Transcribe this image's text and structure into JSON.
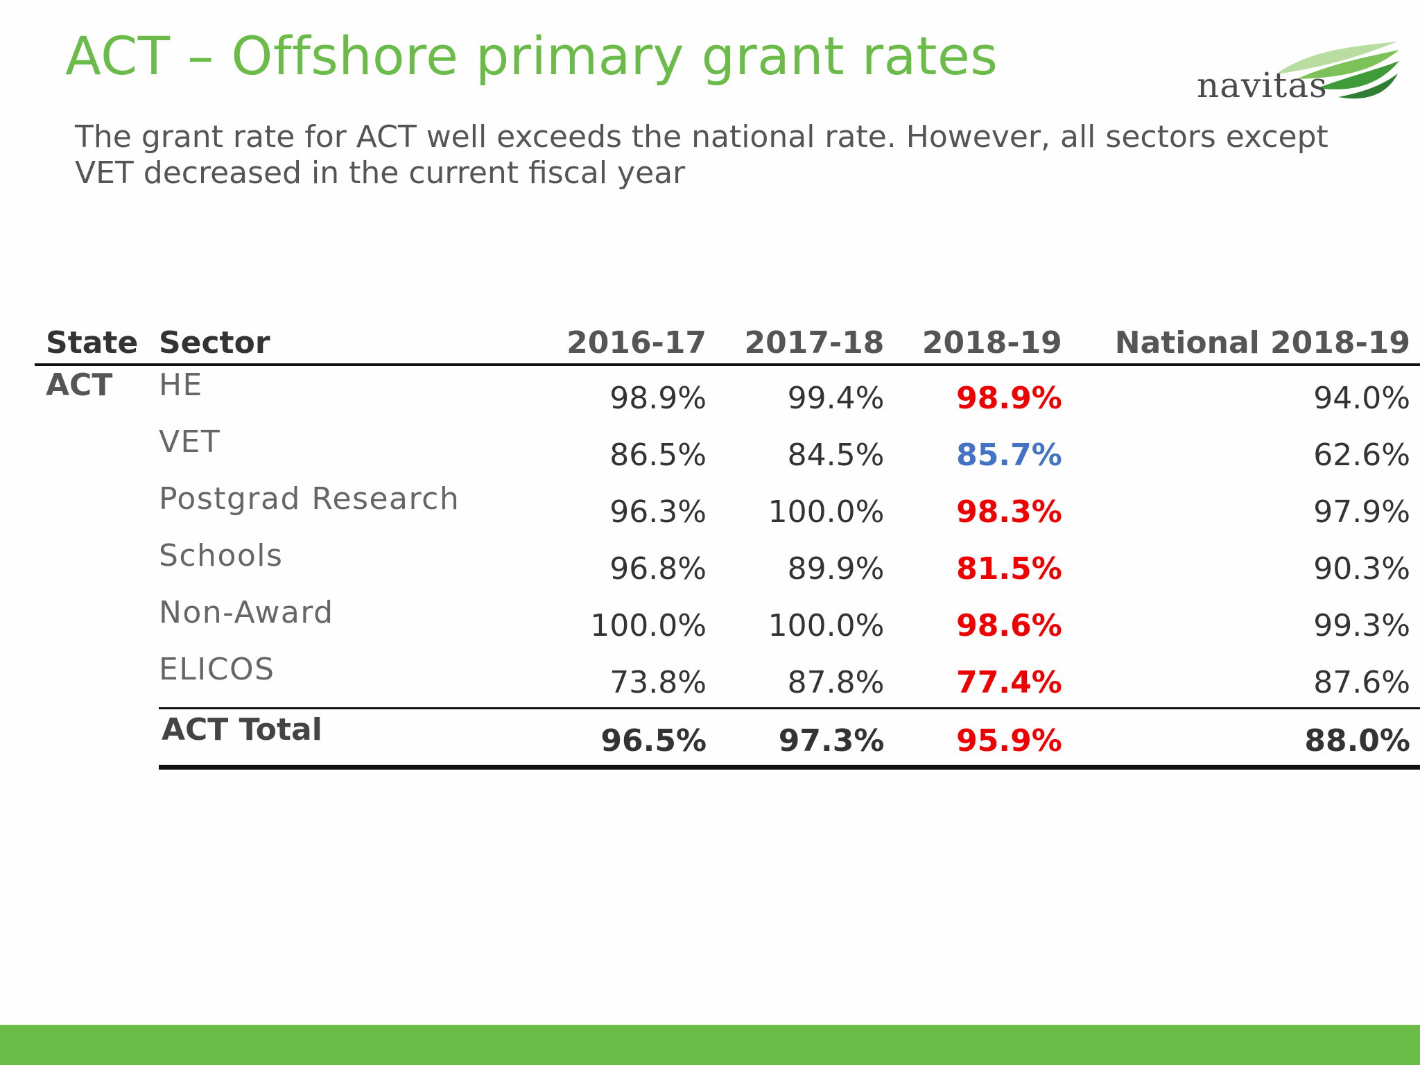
{
  "slide": {
    "title": "ACT – Offshore primary grant rates",
    "subtitle": "The grant rate for ACT well exceeds the national rate. However, all sectors except VET decreased in the current fiscal year",
    "logo_text": "navitas",
    "colors": {
      "accent": "#6abb48",
      "decrease": "#ee0000",
      "increase": "#4472c4"
    }
  },
  "table": {
    "headers": {
      "state": "State",
      "sector": "Sector",
      "y1": "2016-17",
      "y2": "2017-18",
      "y3": "2018-19",
      "national": "National 2018-19"
    },
    "state": "ACT",
    "rows": [
      {
        "sector": "HE",
        "y1": "98.9%",
        "y2": "99.4%",
        "y3": "98.9%",
        "national": "94.0%",
        "trend": "down"
      },
      {
        "sector": "VET",
        "y1": "86.5%",
        "y2": "84.5%",
        "y3": "85.7%",
        "national": "62.6%",
        "trend": "up"
      },
      {
        "sector": "Postgrad Research",
        "y1": "96.3%",
        "y2": "100.0%",
        "y3": "98.3%",
        "national": "97.9%",
        "trend": "down"
      },
      {
        "sector": "Schools",
        "y1": "96.8%",
        "y2": "89.9%",
        "y3": "81.5%",
        "national": "90.3%",
        "trend": "down"
      },
      {
        "sector": "Non-Award",
        "y1": "100.0%",
        "y2": "100.0%",
        "y3": "98.6%",
        "national": "99.3%",
        "trend": "down"
      },
      {
        "sector": "ELICOS",
        "y1": "73.8%",
        "y2": "87.8%",
        "y3": "77.4%",
        "national": "87.6%",
        "trend": "down"
      }
    ],
    "total": {
      "label": "ACT Total",
      "y1": "96.5%",
      "y2": "97.3%",
      "y3": "95.9%",
      "national": "88.0%",
      "trend": "down"
    }
  }
}
